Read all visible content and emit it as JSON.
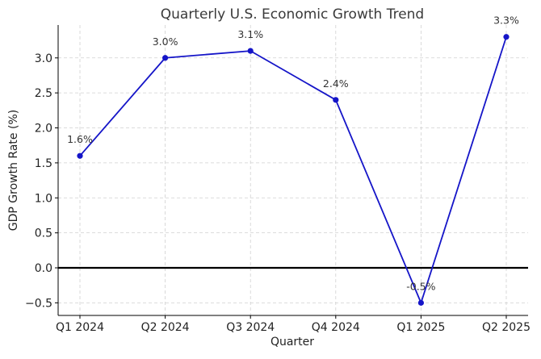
{
  "chart_data": {
    "type": "line",
    "title": "Quarterly U.S. Economic Growth Trend",
    "xlabel": "Quarter",
    "ylabel": "GDP Growth Rate (%)",
    "categories": [
      "Q1 2024",
      "Q2 2024",
      "Q3 2024",
      "Q4 2024",
      "Q1 2025",
      "Q2 2025"
    ],
    "series": [
      {
        "values": [
          1.6,
          3.0,
          3.1,
          2.4,
          -0.5,
          3.3
        ],
        "color": "#1515c8"
      }
    ],
    "data_labels": [
      "1.6%",
      "3.0%",
      "3.1%",
      "2.4%",
      "-0.5%",
      "3.3%"
    ],
    "yticks": [
      -0.5,
      0.0,
      0.5,
      1.0,
      1.5,
      2.0,
      2.5,
      3.0
    ],
    "ytick_labels": [
      "−0.5",
      "0.0",
      "0.5",
      "1.0",
      "1.5",
      "2.0",
      "2.5",
      "3.0"
    ],
    "ylim": [
      -0.68,
      3.47
    ],
    "grid": true,
    "zero_line": true,
    "zero_line_color": "#000000"
  }
}
